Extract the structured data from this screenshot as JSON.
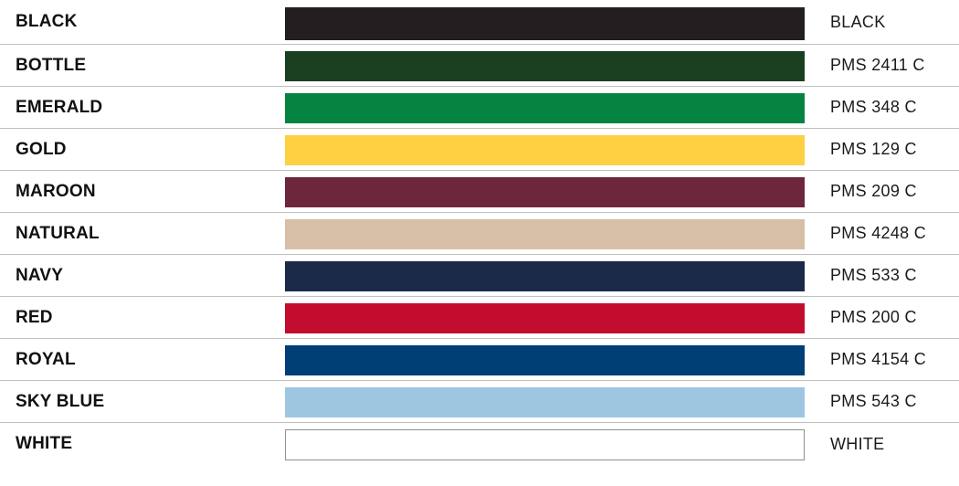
{
  "colors": [
    {
      "name": "BLACK",
      "code": "BLACK",
      "swatch": "#231f20"
    },
    {
      "name": "BOTTLE",
      "code": "PMS 2411 C",
      "swatch": "#1b3f21"
    },
    {
      "name": "EMERALD",
      "code": "PMS 348 C",
      "swatch": "#058441"
    },
    {
      "name": "GOLD",
      "code": "PMS 129 C",
      "swatch": "#fed042"
    },
    {
      "name": "MAROON",
      "code": "PMS 209 C",
      "swatch": "#6e263d"
    },
    {
      "name": "NATURAL",
      "code": "PMS 4248 C",
      "swatch": "#d7bfa7"
    },
    {
      "name": "NAVY",
      "code": "PMS 533 C",
      "swatch": "#1a2a48"
    },
    {
      "name": "RED",
      "code": "PMS 200 C",
      "swatch": "#c30d2e"
    },
    {
      "name": "ROYAL",
      "code": "PMS 4154 C",
      "swatch": "#003f76"
    },
    {
      "name": "SKY BLUE",
      "code": "PMS 543 C",
      "swatch": "#9ec6e1"
    },
    {
      "name": "WHITE",
      "code": "WHITE",
      "swatch": "#ffffff"
    }
  ]
}
